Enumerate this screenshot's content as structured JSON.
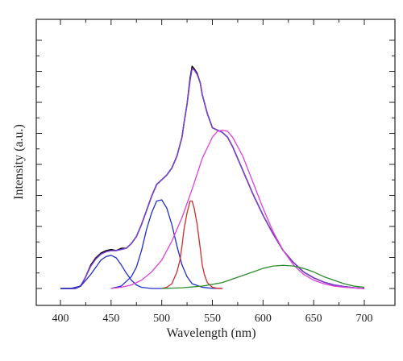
{
  "chart_data": {
    "type": "line",
    "title": "",
    "xlabel": "Wavelength (nm)",
    "ylabel": "Intensity (a.u.)",
    "xlim": [
      400,
      700
    ],
    "ylim": [
      0,
      1.05
    ],
    "x_ticks": [
      400,
      450,
      500,
      550,
      600,
      650,
      700
    ],
    "grid": false,
    "legend": "none",
    "y_tick_labels": "hidden",
    "series": [
      {
        "color": "#000000",
        "x": [
          400,
          410,
          415,
          420,
          425,
          430,
          435,
          440,
          445,
          450,
          455,
          460,
          465,
          470,
          475,
          480,
          485,
          490,
          495,
          500,
          505,
          510,
          515,
          520,
          522,
          525,
          528,
          530,
          532,
          535,
          538,
          540,
          545,
          550,
          555,
          560,
          565,
          570,
          575,
          580,
          590,
          600,
          610,
          620,
          630,
          640,
          650,
          660,
          670,
          680,
          690,
          700
        ],
        "y": [
          0.0,
          0.0,
          0.0,
          0.01,
          0.05,
          0.1,
          0.13,
          0.15,
          0.16,
          0.165,
          0.16,
          0.17,
          0.17,
          0.19,
          0.22,
          0.27,
          0.33,
          0.39,
          0.44,
          0.46,
          0.48,
          0.51,
          0.56,
          0.64,
          0.7,
          0.78,
          0.89,
          0.94,
          0.93,
          0.91,
          0.87,
          0.82,
          0.74,
          0.68,
          0.67,
          0.66,
          0.64,
          0.6,
          0.55,
          0.5,
          0.4,
          0.31,
          0.23,
          0.16,
          0.11,
          0.07,
          0.045,
          0.027,
          0.015,
          0.008,
          0.003,
          0.0
        ]
      },
      {
        "color": "#7b3fd6",
        "x": [
          400,
          410,
          415,
          420,
          425,
          430,
          435,
          440,
          445,
          450,
          455,
          460,
          465,
          470,
          475,
          480,
          485,
          490,
          495,
          500,
          505,
          510,
          515,
          520,
          522,
          525,
          528,
          530,
          532,
          535,
          538,
          540,
          545,
          550,
          555,
          560,
          565,
          570,
          575,
          580,
          590,
          600,
          610,
          620,
          630,
          640,
          650,
          660,
          670,
          680,
          690,
          700
        ],
        "y": [
          0.0,
          0.0,
          0.0,
          0.012,
          0.05,
          0.095,
          0.125,
          0.145,
          0.155,
          0.16,
          0.16,
          0.165,
          0.17,
          0.19,
          0.22,
          0.27,
          0.33,
          0.39,
          0.44,
          0.46,
          0.48,
          0.51,
          0.56,
          0.64,
          0.7,
          0.78,
          0.88,
          0.93,
          0.925,
          0.905,
          0.87,
          0.82,
          0.74,
          0.68,
          0.67,
          0.66,
          0.64,
          0.6,
          0.55,
          0.5,
          0.4,
          0.31,
          0.23,
          0.16,
          0.11,
          0.07,
          0.045,
          0.027,
          0.015,
          0.008,
          0.003,
          0.0
        ]
      },
      {
        "color": "#1f2fc8",
        "x": [
          400,
          410,
          420,
          430,
          440,
          445,
          450,
          455,
          460,
          465,
          470,
          475,
          480,
          490,
          500
        ],
        "y": [
          0.0,
          0.0,
          0.01,
          0.06,
          0.12,
          0.135,
          0.14,
          0.13,
          0.1,
          0.065,
          0.035,
          0.015,
          0.005,
          0.0,
          0.0
        ]
      },
      {
        "color": "#1f2fc8",
        "x": [
          450,
          460,
          470,
          475,
          480,
          485,
          490,
          495,
          500,
          505,
          510,
          515,
          520,
          525,
          530,
          540,
          550,
          560
        ],
        "y": [
          0.0,
          0.01,
          0.05,
          0.09,
          0.16,
          0.25,
          0.32,
          0.37,
          0.375,
          0.34,
          0.27,
          0.18,
          0.1,
          0.05,
          0.02,
          0.005,
          0.001,
          0.0
        ]
      },
      {
        "color": "#d42a2a",
        "x": [
          500,
          505,
          510,
          515,
          518,
          520,
          522,
          525,
          528,
          530,
          532,
          535,
          538,
          540,
          542,
          545,
          550,
          555,
          560
        ],
        "y": [
          0.0,
          0.005,
          0.02,
          0.07,
          0.12,
          0.18,
          0.25,
          0.32,
          0.37,
          0.37,
          0.34,
          0.27,
          0.17,
          0.1,
          0.06,
          0.025,
          0.005,
          0.001,
          0.0
        ]
      },
      {
        "color": "#e040d8",
        "x": [
          450,
          460,
          470,
          480,
          490,
          500,
          510,
          520,
          530,
          540,
          550,
          555,
          560,
          565,
          570,
          580,
          590,
          600,
          610,
          620,
          630,
          640,
          650,
          660,
          670,
          680,
          690,
          700
        ],
        "y": [
          0.0,
          0.005,
          0.015,
          0.035,
          0.07,
          0.12,
          0.2,
          0.3,
          0.42,
          0.55,
          0.64,
          0.665,
          0.67,
          0.665,
          0.64,
          0.56,
          0.45,
          0.34,
          0.24,
          0.16,
          0.1,
          0.06,
          0.035,
          0.02,
          0.01,
          0.005,
          0.002,
          0.0
        ]
      },
      {
        "color": "#2e8b2e",
        "x": [
          500,
          520,
          540,
          560,
          570,
          580,
          590,
          600,
          610,
          620,
          630,
          640,
          650,
          660,
          670,
          680,
          690,
          700
        ],
        "y": [
          0.0,
          0.003,
          0.01,
          0.025,
          0.04,
          0.055,
          0.07,
          0.085,
          0.095,
          0.098,
          0.095,
          0.085,
          0.07,
          0.05,
          0.035,
          0.02,
          0.01,
          0.005
        ]
      }
    ]
  }
}
